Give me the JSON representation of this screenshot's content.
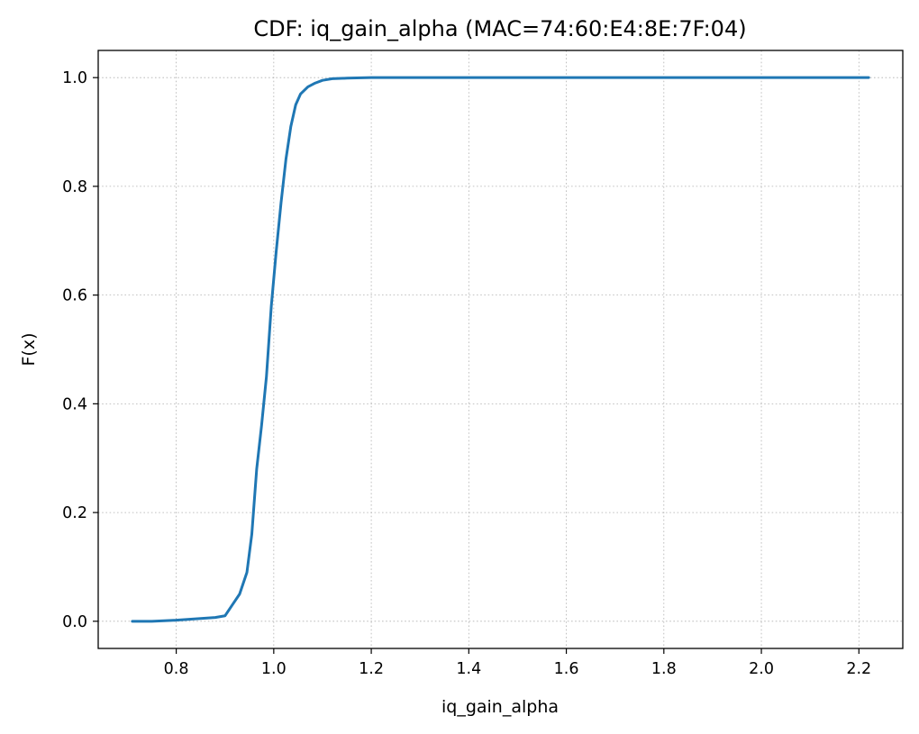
{
  "chart_data": {
    "type": "line",
    "title": "CDF: iq_gain_alpha (MAC=74:60:E4:8E:7F:04)",
    "xlabel": "iq_gain_alpha",
    "ylabel": "F(x)",
    "xlim": [
      0.64,
      2.29
    ],
    "ylim": [
      -0.05,
      1.05
    ],
    "xticks": [
      0.8,
      1.0,
      1.2,
      1.4,
      1.6,
      1.8,
      2.0,
      2.2
    ],
    "xtick_labels": [
      "0.8",
      "1.0",
      "1.2",
      "1.4",
      "1.6",
      "1.8",
      "2.0",
      "2.2"
    ],
    "yticks": [
      0.0,
      0.2,
      0.4,
      0.6,
      0.8,
      1.0
    ],
    "ytick_labels": [
      "0.0",
      "0.2",
      "0.4",
      "0.6",
      "0.8",
      "1.0"
    ],
    "grid": true,
    "series": [
      {
        "color": "#1f77b4",
        "x": [
          0.71,
          0.75,
          0.8,
          0.85,
          0.88,
          0.9,
          0.915,
          0.93,
          0.945,
          0.955,
          0.965,
          0.975,
          0.985,
          0.995,
          1.005,
          1.015,
          1.025,
          1.035,
          1.045,
          1.055,
          1.07,
          1.085,
          1.1,
          1.12,
          1.15,
          1.2,
          1.25,
          1.5,
          2.22
        ],
        "y": [
          0.0,
          0.0,
          0.002,
          0.005,
          0.007,
          0.01,
          0.03,
          0.05,
          0.09,
          0.16,
          0.28,
          0.36,
          0.45,
          0.58,
          0.68,
          0.77,
          0.85,
          0.91,
          0.95,
          0.97,
          0.983,
          0.99,
          0.995,
          0.998,
          0.999,
          1.0,
          1.0,
          1.0,
          1.0
        ]
      }
    ]
  }
}
